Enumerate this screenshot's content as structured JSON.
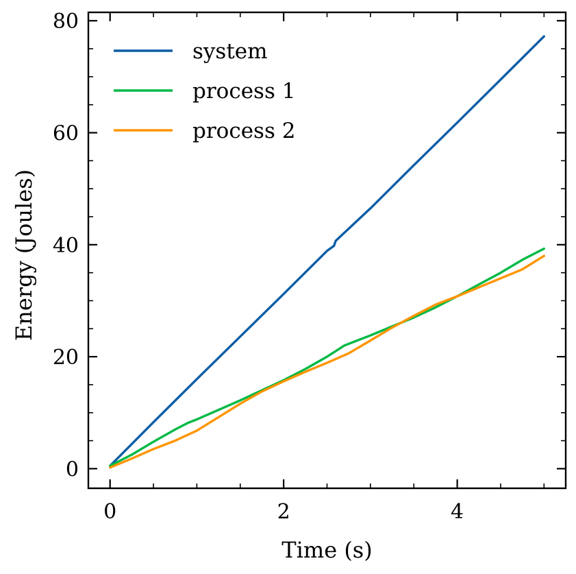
{
  "chart_data": {
    "type": "line",
    "xlabel": "Time (s)",
    "ylabel": "Energy (Joules)",
    "xlim": [
      -0.25,
      5.25
    ],
    "ylim": [
      -3.5,
      81.5
    ],
    "xticks": [
      0,
      2,
      4
    ],
    "xtick_labels": [
      "0",
      "2",
      "4"
    ],
    "yticks": [
      0,
      20,
      40,
      60,
      80
    ],
    "ytick_labels": [
      "0",
      "20",
      "40",
      "60",
      "80"
    ],
    "x_minor_step": 0.5,
    "y_minor_step": 5,
    "grid": false,
    "legend_position": "top-left",
    "series": [
      {
        "name": "system",
        "color": "#0C5DA5",
        "x": [
          0,
          0.5,
          1.0,
          1.5,
          2.0,
          2.5,
          2.58,
          2.6,
          3.0,
          3.5,
          4.0,
          4.5,
          5.0
        ],
        "y": [
          0.5,
          8.3,
          16.0,
          23.6,
          31.2,
          38.9,
          39.8,
          40.7,
          46.5,
          54.2,
          61.8,
          69.5,
          77.2
        ]
      },
      {
        "name": "process 1",
        "color": "#00B945",
        "x": [
          0,
          0.25,
          0.5,
          0.75,
          0.9,
          1.0,
          1.25,
          1.5,
          1.75,
          2.0,
          2.25,
          2.5,
          2.6,
          2.7,
          3.0,
          3.25,
          3.5,
          3.75,
          4.0,
          4.25,
          4.5,
          4.75,
          5.0
        ],
        "y": [
          0.5,
          2.5,
          4.8,
          7.0,
          8.2,
          8.8,
          10.5,
          12.2,
          14.0,
          15.8,
          17.8,
          20.0,
          21.0,
          22.0,
          23.8,
          25.4,
          27.0,
          28.8,
          30.8,
          32.9,
          35.0,
          37.3,
          39.3
        ]
      },
      {
        "name": "process 2",
        "color": "#FF9500",
        "x": [
          0,
          0.25,
          0.5,
          0.75,
          1.0,
          1.25,
          1.5,
          1.75,
          2.0,
          2.25,
          2.5,
          2.75,
          3.0,
          3.25,
          3.5,
          3.75,
          4.0,
          4.25,
          4.5,
          4.75,
          5.0
        ],
        "y": [
          0.2,
          1.8,
          3.5,
          5.0,
          6.8,
          9.2,
          11.6,
          13.8,
          15.6,
          17.3,
          18.9,
          20.6,
          22.9,
          25.2,
          27.3,
          29.3,
          30.8,
          32.4,
          34.0,
          35.6,
          38.0
        ]
      }
    ]
  }
}
